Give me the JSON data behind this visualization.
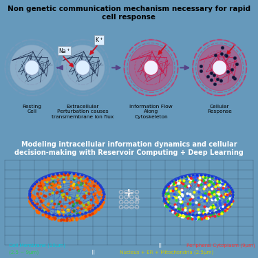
{
  "top_bg_color": "#b8cedd",
  "bottom_bg_color": "#080810",
  "border_color": "#6699bb",
  "top_title": "Non genetic communication mechanism necessary for rapid\ncell response",
  "bottom_title": "Modeling intracellular information dynamics and cellular\ndecision-making with Reservoir Computing + Deep Learning",
  "cell_labels": [
    "Resting\nCell",
    "Extracellular\nPerturbation causes\ntransmembrane ion flux",
    "Information Flow\nAlong\nCytoskeleton",
    "Cellular\nResponse"
  ],
  "legend_colors": {
    "cell_membrane": "#00ccdd",
    "peripheral": "#ff3333",
    "cytoskeleton": "#33cc55",
    "nucleus": "#cccc00",
    "signal": "#ffffff"
  },
  "cell_resting": {
    "outer_dash": "#7799bb",
    "body": "#aabfd4",
    "body_alpha": 0.55,
    "inner_dash": "#8899bb",
    "nucleus": "#ddeeff",
    "cyto_line": "#1a2a4a"
  },
  "cell_active": {
    "outer_dash": "#cc3366",
    "body": "#cc4477",
    "body_alpha": 0.55,
    "inner_dash": "#cc3366",
    "nucleus": "#f0f0ff",
    "cyto_line": "#cc1144"
  },
  "grid_color": "#1a2a3a",
  "sphere_left_colors": [
    "#ff6600",
    "#ff3300",
    "#cc6600",
    "#aacc00",
    "#228833",
    "#ffcc00"
  ],
  "sphere_right_colors": [
    "#ffffff",
    "#ff2222",
    "#22cc22",
    "#ffff00",
    "#2255ff"
  ],
  "nn_color": "#ccddee"
}
